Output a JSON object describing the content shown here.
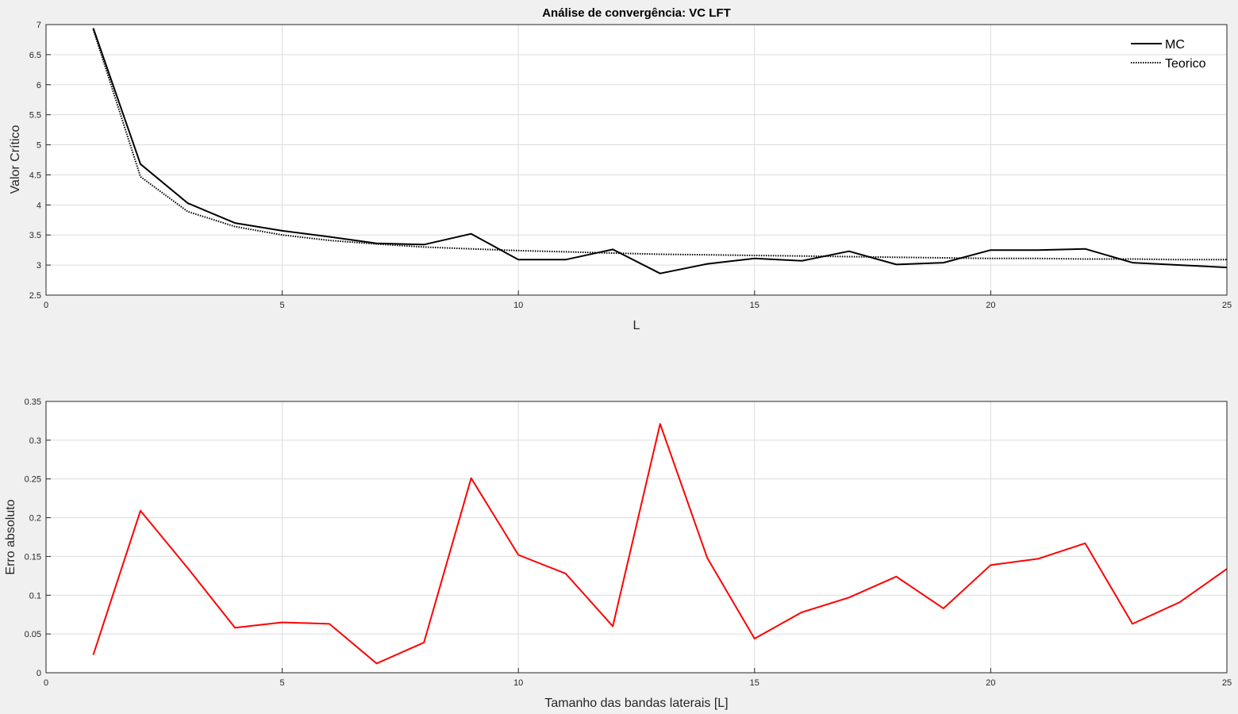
{
  "chart_data": [
    {
      "type": "line",
      "title": "Análise de convergência: VC LFT",
      "xlabel": "L",
      "ylabel": "Valor Crítico",
      "xlim": [
        0,
        25
      ],
      "ylim": [
        2.5,
        7
      ],
      "xticks": [
        0,
        5,
        10,
        15,
        20,
        25
      ],
      "yticks": [
        2.5,
        3,
        3.5,
        4,
        4.5,
        5,
        5.5,
        6,
        6.5,
        7
      ],
      "grid": true,
      "legend_position": "top-right",
      "x": [
        1,
        2,
        3,
        4,
        5,
        6,
        7,
        8,
        9,
        10,
        11,
        12,
        13,
        14,
        15,
        16,
        17,
        18,
        19,
        20,
        21,
        22,
        23,
        24,
        25
      ],
      "series": [
        {
          "name": "MC",
          "color": "#000000",
          "style": "solid",
          "values": [
            6.94,
            4.68,
            4.03,
            3.7,
            3.57,
            3.47,
            3.36,
            3.34,
            3.52,
            3.09,
            3.09,
            3.26,
            2.86,
            3.02,
            3.11,
            3.07,
            3.23,
            3.01,
            3.04,
            3.25,
            3.25,
            3.27,
            3.04,
            3.0,
            2.96
          ]
        },
        {
          "name": "Teorico",
          "color": "#000000",
          "style": "dotted",
          "values": [
            6.92,
            4.47,
            3.89,
            3.64,
            3.5,
            3.41,
            3.35,
            3.3,
            3.27,
            3.24,
            3.22,
            3.2,
            3.18,
            3.17,
            3.16,
            3.15,
            3.14,
            3.13,
            3.12,
            3.11,
            3.11,
            3.1,
            3.1,
            3.09,
            3.09
          ]
        }
      ]
    },
    {
      "type": "line",
      "title": "",
      "xlabel": "Tamanho das bandas laterais [L]",
      "ylabel": "Erro absoluto",
      "xlim": [
        0,
        25
      ],
      "ylim": [
        0,
        0.35
      ],
      "xticks": [
        0,
        5,
        10,
        15,
        20,
        25
      ],
      "yticks": [
        0,
        0.05,
        0.1,
        0.15,
        0.2,
        0.25,
        0.3,
        0.35
      ],
      "grid": true,
      "x": [
        1,
        2,
        3,
        4,
        5,
        6,
        7,
        8,
        9,
        10,
        11,
        12,
        13,
        14,
        15,
        16,
        17,
        18,
        19,
        20,
        21,
        22,
        23,
        24,
        25
      ],
      "series": [
        {
          "color": "#ff0000",
          "style": "solid",
          "values": [
            0.023,
            0.209,
            0.135,
            0.058,
            0.065,
            0.063,
            0.012,
            0.039,
            0.251,
            0.152,
            0.128,
            0.06,
            0.321,
            0.148,
            0.044,
            0.078,
            0.097,
            0.124,
            0.083,
            0.139,
            0.147,
            0.167,
            0.063,
            0.091,
            0.134
          ]
        }
      ]
    }
  ]
}
